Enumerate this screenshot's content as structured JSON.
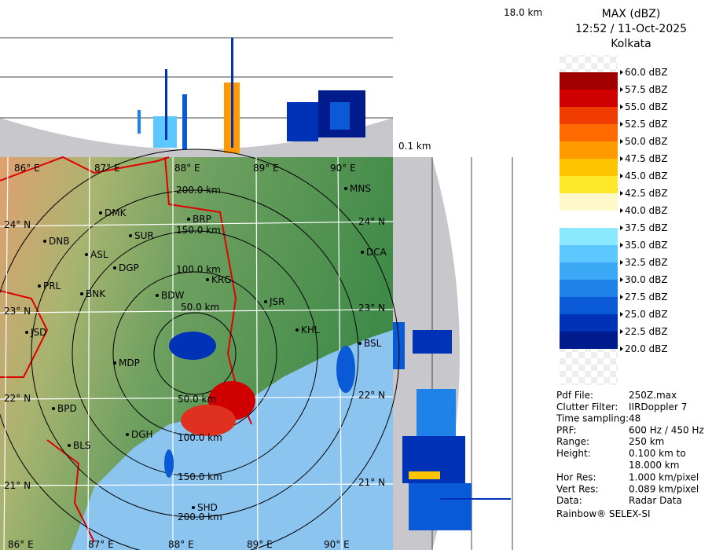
{
  "profile": {
    "top_height": "18.0 km",
    "bottom_height": "0.1 km"
  },
  "legend": {
    "title": "MAX (dBZ)",
    "time": "12:52 / 11-Oct-2025",
    "station": "Kolkata",
    "labels": [
      "60.0 dBZ",
      "57.5 dBZ",
      "55.0 dBZ",
      "52.5 dBZ",
      "50.0 dBZ",
      "47.5 dBZ",
      "45.0 dBZ",
      "42.5 dBZ",
      "40.0 dBZ",
      "37.5 dBZ",
      "35.0 dBZ",
      "32.5 dBZ",
      "30.0 dBZ",
      "27.5 dBZ",
      "25.0 dBZ",
      "22.5 dBZ",
      "20.0 dBZ"
    ],
    "band_colors": [
      "#f4f4f4",
      "#a00000",
      "#d00000",
      "#f03c00",
      "#ff6a00",
      "#ff9a00",
      "#ffc400",
      "#ffe82a",
      "#fff8c8",
      "#ffffff",
      "#8ce8ff",
      "#5cc8ff",
      "#3aa8f4",
      "#1e82e8",
      "#0a5ad8",
      "#0032b8",
      "#001c8c"
    ]
  },
  "info": {
    "rows": [
      [
        "Pdf File:",
        "250Z.max"
      ],
      [
        "Clutter Filter:",
        "IIRDoppler 7"
      ],
      [
        "Time sampling:",
        "48"
      ],
      [
        "PRF:",
        "600 Hz / 450 Hz"
      ],
      [
        "Range:",
        "250 km"
      ],
      [
        "Height:",
        "0.100 km to"
      ],
      [
        "",
        "18.000 km"
      ],
      [
        "Hor Res:",
        "1.000 km/pixel"
      ],
      [
        "Vert Res:",
        "0.089 km/pixel"
      ],
      [
        "Data:",
        "Radar Data"
      ]
    ],
    "footer": "Rainbow® SELEX-SI"
  },
  "map": {
    "lon_top": [
      "86° E",
      "87° E",
      "88° E",
      "89° E",
      "90° E"
    ],
    "lon_bottom": [
      "86° E",
      "87° E",
      "88° E",
      "89° E",
      "90° E"
    ],
    "lat_left": [
      "24° N",
      "23° N",
      "22° N",
      "21° N"
    ],
    "lat_right": [
      "24° N",
      "23° N",
      "22° N",
      "21° N"
    ],
    "range_top": [
      "200.0 km",
      "150.0 km",
      "100.0 km",
      "50.0 km"
    ],
    "range_bottom": [
      "50.0 km",
      "100.0 km",
      "150.0 km",
      "200.0 km"
    ],
    "cities": [
      "MNS",
      "DMK",
      "BRP",
      "SUR",
      "DNB",
      "ASL",
      "DGP",
      "DCA",
      "PRL",
      "KRG",
      "BNK",
      "BDW",
      "JSR",
      "JSD",
      "KHL",
      "BSL",
      "MDP",
      "BPD",
      "DGH",
      "BLS",
      "SHD"
    ]
  }
}
